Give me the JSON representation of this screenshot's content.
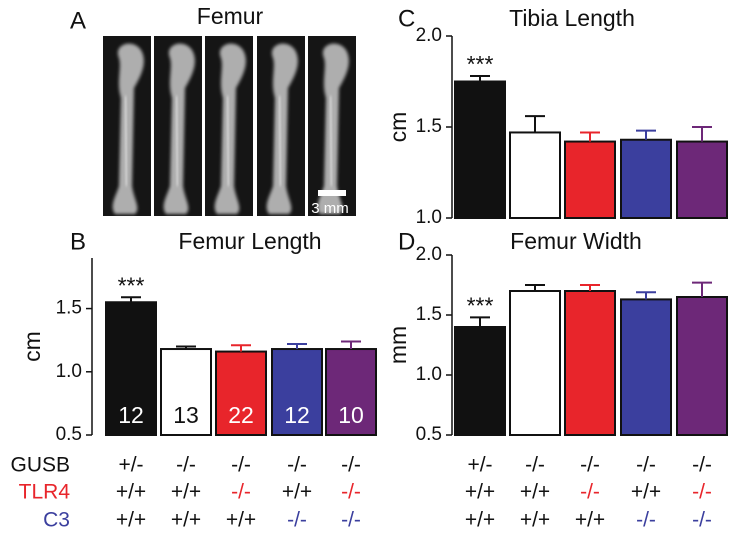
{
  "panel_a": {
    "label": "A",
    "title": "Femur",
    "scale_bar": "3 mm"
  },
  "genotypes": {
    "rows": [
      {
        "name": "GUSB",
        "color": "#111111",
        "cells": [
          "+/-",
          "-/-",
          "-/-",
          "-/-",
          "-/-"
        ],
        "cell_colors": [
          "#111111",
          "#111111",
          "#111111",
          "#111111",
          "#111111"
        ]
      },
      {
        "name": "TLR4",
        "color": "#e8252b",
        "cells": [
          "+/+",
          "+/+",
          "-/-",
          "+/+",
          "-/-"
        ],
        "cell_colors": [
          "#111111",
          "#111111",
          "#e8252b",
          "#111111",
          "#e8252b"
        ]
      },
      {
        "name": "C3",
        "color": "#3b3f9e",
        "cells": [
          "+/+",
          "+/+",
          "+/+",
          "-/-",
          "-/-"
        ],
        "cell_colors": [
          "#111111",
          "#111111",
          "#111111",
          "#3b3f9e",
          "#3b3f9e"
        ]
      }
    ]
  },
  "chart_data": [
    {
      "type": "bar",
      "panel_label": "B",
      "title": "Femur Length",
      "y_label": "cm",
      "values": [
        1.55,
        1.18,
        1.16,
        1.18,
        1.18
      ],
      "errors": [
        0.04,
        0.02,
        0.05,
        0.04,
        0.06
      ],
      "n": [
        12,
        13,
        22,
        12,
        10
      ],
      "annotation": "***",
      "colors": [
        "#111111",
        "#ffffff",
        "#e8252b",
        "#3b3f9e",
        "#6d2878"
      ],
      "errorbar_colors": [
        "#111111",
        "#111111",
        "#e8252b",
        "#3b3f9e",
        "#6d2878"
      ],
      "n_colors": [
        "#ffffff",
        "#111111",
        "#ffffff",
        "#ffffff",
        "#ffffff"
      ],
      "edgecolor": "#111111",
      "ylim": [
        0.5,
        1.9
      ],
      "yticks": [
        0.5,
        {
          "value": 1,
          "label": "1.0"
        },
        1.5
      ]
    },
    {
      "type": "bar",
      "panel_label": "C",
      "title": "Tibia Length",
      "y_label": "cm",
      "values": [
        1.75,
        1.47,
        1.42,
        1.43,
        1.42
      ],
      "errors": [
        0.03,
        0.09,
        0.05,
        0.05,
        0.08
      ],
      "annotation": "***",
      "colors": [
        "#111111",
        "#ffffff",
        "#e8252b",
        "#3b3f9e",
        "#6d2878"
      ],
      "errorbar_colors": [
        "#111111",
        "#111111",
        "#e8252b",
        "#3b3f9e",
        "#6d2878"
      ],
      "edgecolor": "#111111",
      "ylim": [
        1,
        2
      ],
      "yticks": [
        {
          "value": 1,
          "label": "1.0"
        },
        1.5,
        {
          "value": 2,
          "label": "2.0"
        }
      ]
    },
    {
      "type": "bar",
      "panel_label": "D",
      "title": "Femur Width",
      "y_label": "mm",
      "values": [
        1.4,
        1.7,
        1.7,
        1.63,
        1.65
      ],
      "errors": [
        0.08,
        0.05,
        0.05,
        0.06,
        0.12
      ],
      "annotation": "***",
      "colors": [
        "#111111",
        "#ffffff",
        "#e8252b",
        "#3b3f9e",
        "#6d2878"
      ],
      "errorbar_colors": [
        "#111111",
        "#111111",
        "#e8252b",
        "#3b3f9e",
        "#6d2878"
      ],
      "edgecolor": "#111111",
      "ylim": [
        0.5,
        2
      ],
      "yticks": [
        0.5,
        {
          "value": 1,
          "label": "1.0"
        },
        1.5,
        {
          "value": 2,
          "label": "2.0"
        }
      ]
    }
  ]
}
